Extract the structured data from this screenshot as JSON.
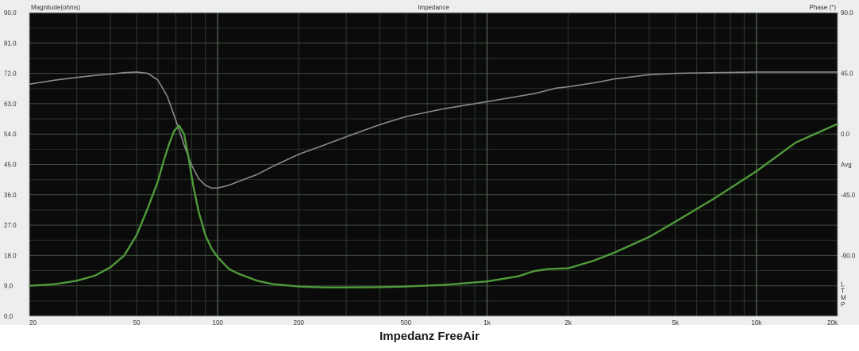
{
  "caption": "Impedanz FreeAir",
  "chart_data": {
    "type": "line",
    "title": "Impedance",
    "ylabel": "Magnitude(ohms)",
    "y2label": "Phase (°)",
    "xscale": "log",
    "xlim": [
      20,
      20000
    ],
    "ylim": [
      0,
      90
    ],
    "y2lim": [
      -135,
      90
    ],
    "x_ticks": [
      {
        "value": 20,
        "label": "20"
      },
      {
        "value": 50,
        "label": "50"
      },
      {
        "value": 100,
        "label": "100"
      },
      {
        "value": 200,
        "label": "200"
      },
      {
        "value": 500,
        "label": "500"
      },
      {
        "value": 1000,
        "label": "1k"
      },
      {
        "value": 2000,
        "label": "2k"
      },
      {
        "value": 5000,
        "label": "5k"
      },
      {
        "value": 10000,
        "label": "10k"
      },
      {
        "value": 20000,
        "label": "20k"
      }
    ],
    "y_ticks": [
      {
        "value": 0,
        "label": "0.0"
      },
      {
        "value": 9,
        "label": "9.0"
      },
      {
        "value": 18,
        "label": "18.0"
      },
      {
        "value": 27,
        "label": "27.0"
      },
      {
        "value": 36,
        "label": "36.0"
      },
      {
        "value": 45,
        "label": "45.0"
      },
      {
        "value": 54,
        "label": "54.0"
      },
      {
        "value": 63,
        "label": "63.0"
      },
      {
        "value": 72,
        "label": "72.0"
      },
      {
        "value": 81,
        "label": "81.0"
      },
      {
        "value": 90,
        "label": "90.0"
      }
    ],
    "y2_ticks": [
      {
        "value": 90,
        "label": "90.0"
      },
      {
        "value": 45,
        "label": "45.0"
      },
      {
        "value": 0,
        "label": "0.0"
      },
      {
        "value": -45,
        "label": "-45.0"
      },
      {
        "value": -90,
        "label": "-90.0"
      }
    ],
    "right_labels": [
      {
        "text": "Avg",
        "value": 45
      },
      {
        "text": "L",
        "value": 9.5
      },
      {
        "text": "T",
        "value": 7.5
      },
      {
        "text": "M",
        "value": 5.5
      },
      {
        "text": "P",
        "value": 3.5
      }
    ],
    "grid": true,
    "series": [
      {
        "axis": "phase",
        "color": "#8a8a8a",
        "x": [
          20,
          25,
          30,
          35,
          40,
          45,
          50,
          55,
          60,
          65,
          70,
          75,
          80,
          85,
          90,
          95,
          100,
          110,
          120,
          140,
          160,
          200,
          250,
          300,
          400,
          500,
          700,
          1000,
          1500,
          1800,
          2000,
          2500,
          3000,
          4000,
          5000,
          7000,
          10000,
          15000,
          20000
        ],
        "y": [
          37,
          40,
          42,
          43.5,
          44.5,
          45.5,
          46,
          45,
          40,
          28,
          10,
          -8,
          -23,
          -33,
          -38,
          -40,
          -40,
          -38,
          -35,
          -30,
          -24,
          -15,
          -8,
          -2,
          7,
          13,
          19,
          24,
          30,
          34,
          35,
          38,
          41,
          44,
          45,
          45.5,
          46,
          46,
          46
        ]
      },
      {
        "axis": "magnitude",
        "color": "#4f9a3a",
        "x": [
          20,
          25,
          30,
          35,
          40,
          45,
          50,
          55,
          60,
          63,
          66,
          69,
          72,
          75,
          78,
          81,
          85,
          90,
          95,
          100,
          110,
          120,
          140,
          160,
          200,
          250,
          300,
          400,
          500,
          700,
          1000,
          1300,
          1500,
          1700,
          2000,
          2500,
          3000,
          4000,
          5000,
          7000,
          10000,
          14000,
          20000
        ],
        "y": [
          9,
          9.5,
          10.5,
          12,
          14.5,
          18,
          24,
          32,
          40,
          46,
          51,
          55,
          56.5,
          54,
          47,
          39,
          31,
          24,
          20,
          17.5,
          14,
          12.5,
          10.5,
          9.5,
          8.8,
          8.5,
          8.5,
          8.6,
          8.8,
          9.3,
          10.3,
          11.8,
          13.4,
          14,
          14.2,
          16.5,
          19,
          23.5,
          28,
          35,
          43,
          51.5,
          57
        ]
      }
    ]
  }
}
